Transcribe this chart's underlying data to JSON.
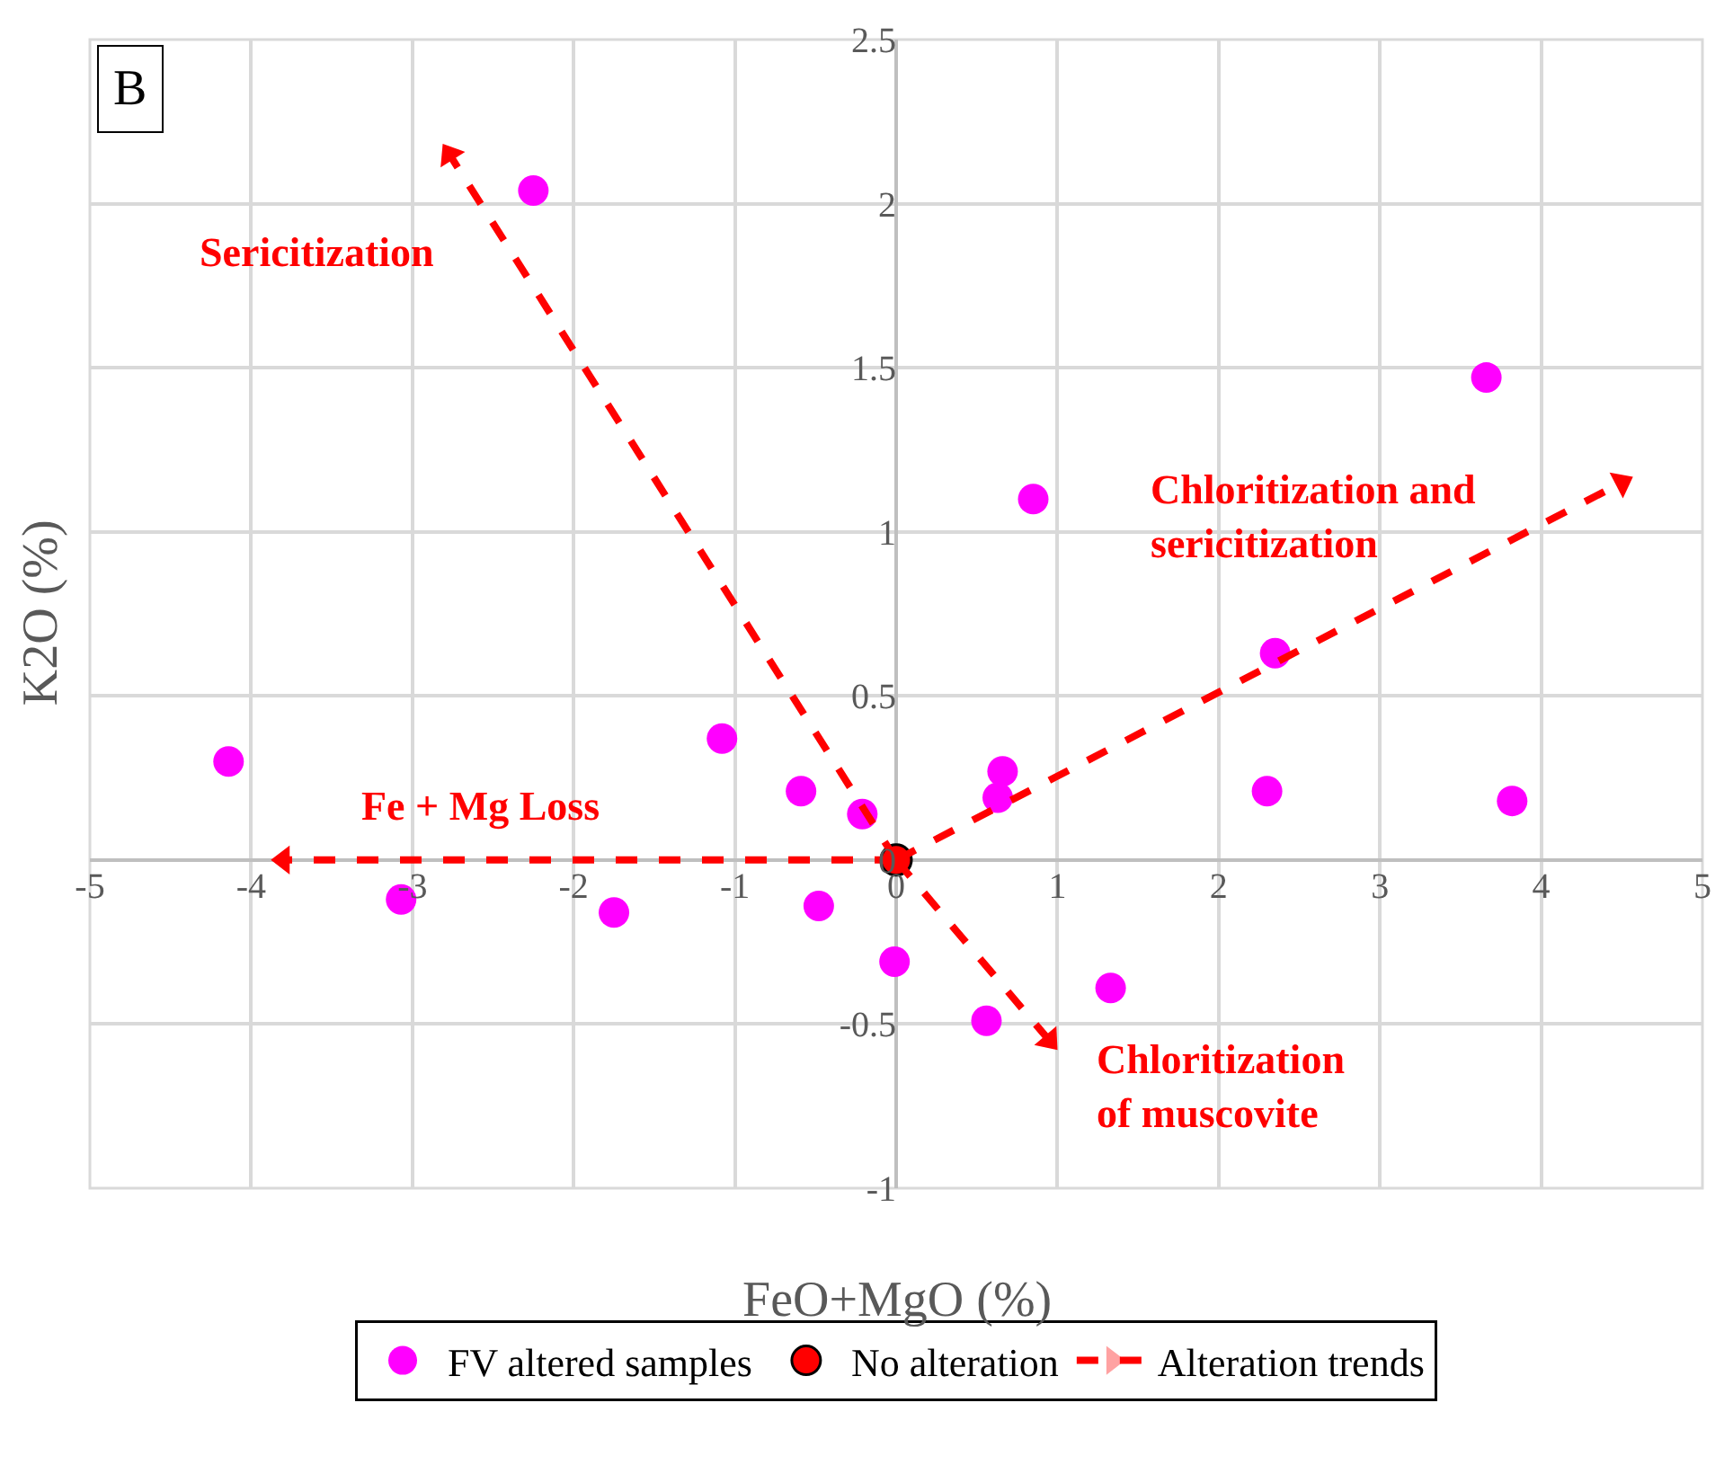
{
  "chart_data": {
    "type": "scatter",
    "xlabel": "FeO+MgO (%)",
    "ylabel": "K2O (%)",
    "xlim": [
      -5,
      5
    ],
    "xticks": [
      -5,
      -4,
      -3,
      -2,
      -1,
      0,
      1,
      2,
      3,
      4,
      5
    ],
    "ylim": [
      -1,
      2.5
    ],
    "yticks": [
      -1,
      -0.5,
      0,
      0.5,
      1,
      1.5,
      2,
      2.5
    ],
    "grid": true,
    "legend": "bottom",
    "marker": "circle",
    "series": [
      {
        "name": "FV altered samples",
        "color": "#ff00ff",
        "x": [
          -4.14,
          -3.07,
          -2.25,
          -1.75,
          -1.08,
          -0.59,
          -0.48,
          -0.21,
          -0.01,
          0.56,
          0.63,
          0.66,
          0.85,
          1.33,
          2.3,
          2.35,
          3.66,
          3.82
        ],
        "values": [
          0.3,
          -0.12,
          2.04,
          -0.16,
          0.37,
          0.21,
          -0.14,
          0.14,
          -0.31,
          -0.49,
          0.19,
          0.27,
          1.1,
          -0.39,
          0.21,
          0.63,
          1.47,
          0.18
        ]
      },
      {
        "name": "No alteration",
        "color": "#ff0000",
        "x": [
          0
        ],
        "values": [
          0
        ]
      },
      {
        "name": "Alteration trends",
        "type": "line",
        "line_style": "dashed",
        "marker": "triangle",
        "color": "#ff0000",
        "x": [
          0,
          -2.77,
          null,
          0,
          4.5,
          null,
          0,
          -3.8,
          null,
          0,
          0.95
        ],
        "values": [
          0,
          2.15,
          null,
          0,
          1.15,
          null,
          0,
          0,
          null,
          0,
          -0.55
        ]
      }
    ],
    "annotations": [
      "B",
      "Sericitization",
      "Chloritization and\nsericitization",
      "Fe + Mg Loss",
      "Chloritization\nof muscovite"
    ]
  }
}
